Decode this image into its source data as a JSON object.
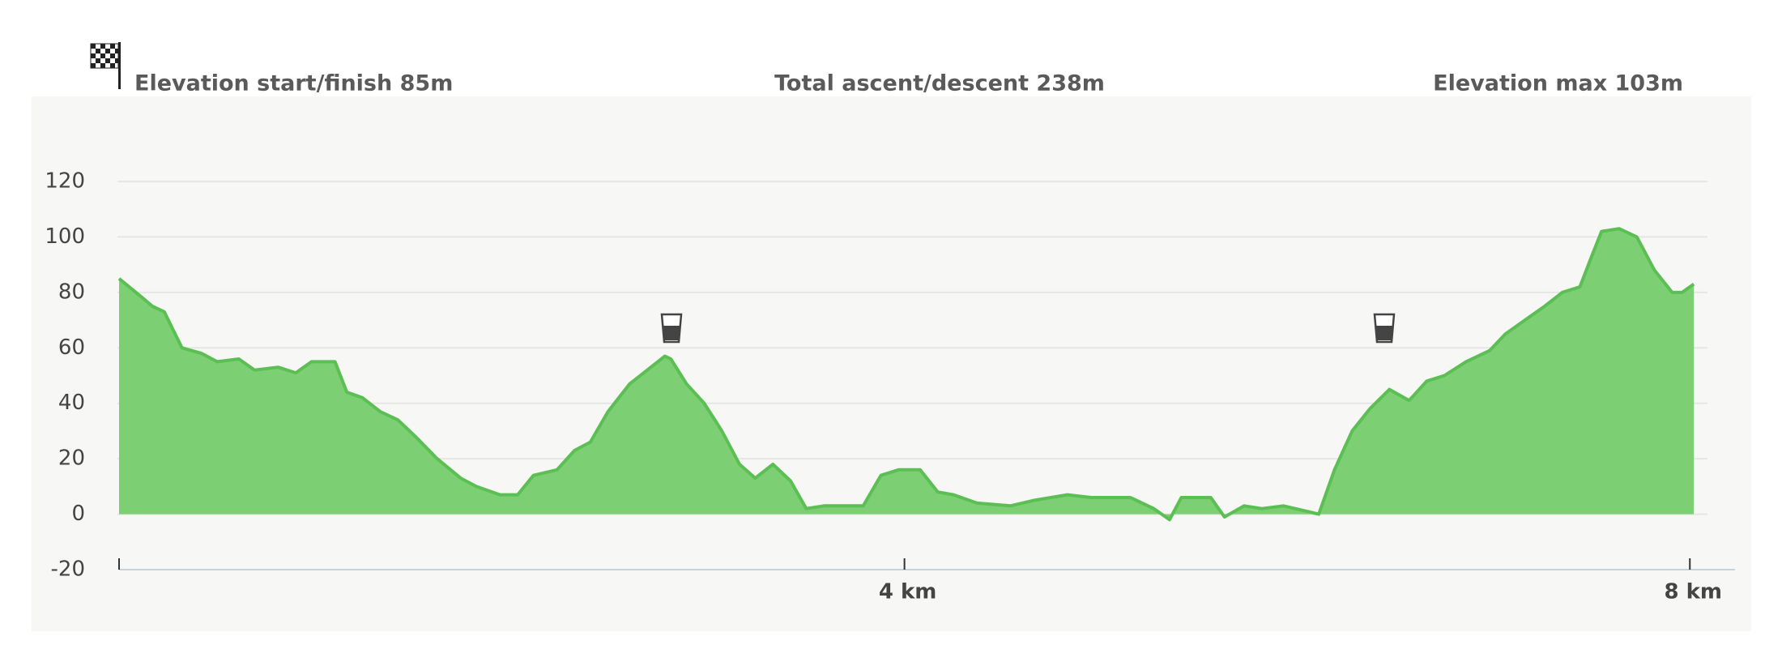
{
  "chart_data": {
    "type": "area",
    "header": [
      "Elevation start/finish 85m",
      "Total ascent/descent 238m",
      "Elevation max 103m"
    ],
    "color": "#7dcf74",
    "line_color": "#5cbf54",
    "x": [
      0,
      0.12,
      0.17,
      0.23,
      0.32,
      0.42,
      0.5,
      0.61,
      0.69,
      0.81,
      0.9,
      0.98,
      1.1,
      1.16,
      1.24,
      1.33,
      1.42,
      1.51,
      1.62,
      1.74,
      1.82,
      1.94,
      2.03,
      2.11,
      2.23,
      2.32,
      2.4,
      2.49,
      2.6,
      2.69,
      2.78,
      2.81,
      2.89,
      2.98,
      3.07,
      3.16,
      3.24,
      3.33,
      3.42,
      3.5,
      3.59,
      3.79,
      3.88,
      3.97,
      4.08,
      4.17,
      4.25,
      4.37,
      4.54,
      4.66,
      4.83,
      4.95,
      5.15,
      5.27,
      5.35,
      5.41,
      5.56,
      5.63,
      5.73,
      5.82,
      5.93,
      6.05,
      6.11,
      6.19,
      6.28,
      6.37,
      6.47,
      6.57,
      6.66,
      6.75,
      6.86,
      6.98,
      7.06,
      7.18,
      7.26,
      7.35,
      7.44,
      7.5,
      7.55,
      7.64,
      7.73,
      7.82,
      7.91,
      7.96,
      8.02
    ],
    "values": [
      85,
      78,
      75,
      73,
      60,
      58,
      55,
      56,
      52,
      53,
      51,
      55,
      55,
      44,
      42,
      37,
      34,
      28,
      20,
      13,
      10,
      7,
      7,
      14,
      16,
      23,
      26,
      37,
      47,
      52,
      57,
      56,
      47,
      40,
      30,
      18,
      13,
      18,
      12,
      2,
      3,
      3,
      14,
      16,
      16,
      8,
      7,
      4,
      3,
      5,
      7,
      6,
      6,
      2,
      -2,
      6,
      6,
      -1,
      3,
      2,
      3,
      1,
      0,
      16,
      30,
      38,
      45,
      41,
      48,
      50,
      55,
      59,
      65,
      71,
      75,
      80,
      82,
      93,
      102,
      103,
      100,
      88,
      80,
      80,
      83
    ],
    "xlim": [
      0,
      8.23
    ],
    "xticks": [
      {
        "value": 4,
        "label": "4 km"
      },
      {
        "value": 8,
        "label": "8 km"
      }
    ],
    "ylim": [
      -20,
      120
    ],
    "yticks": [
      -20,
      0,
      20,
      40,
      60,
      80,
      100,
      120
    ],
    "grid": true
  }
}
